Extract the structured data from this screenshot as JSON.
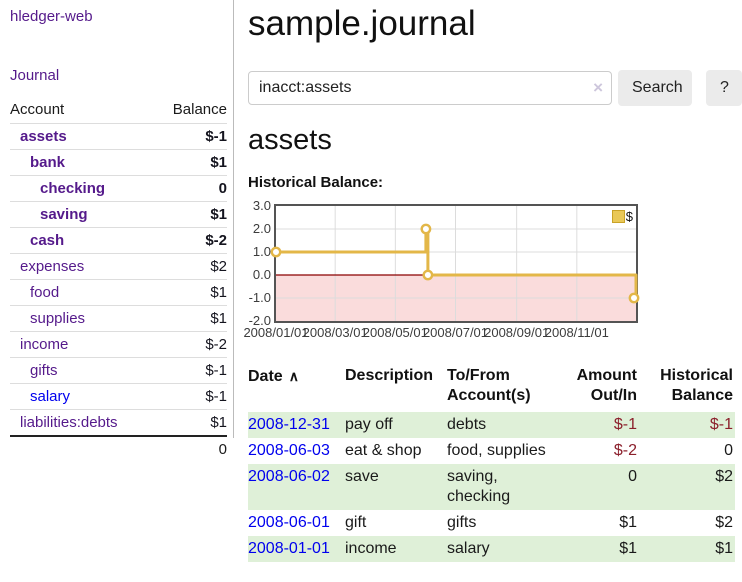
{
  "app": {
    "title": "hledger-web"
  },
  "sidebar": {
    "nav_journal": "Journal",
    "accounts_header": {
      "account": "Account",
      "balance": "Balance"
    },
    "accounts": [
      {
        "name": "assets",
        "indent": 1,
        "bold": true,
        "balance": "$-1",
        "balance_style": "neg-strong"
      },
      {
        "name": "bank",
        "indent": 2,
        "bold": true,
        "balance": "$1",
        "balance_style": ""
      },
      {
        "name": "checking",
        "indent": 3,
        "bold": true,
        "balance": "0",
        "balance_style": ""
      },
      {
        "name": "saving",
        "indent": 3,
        "bold": true,
        "balance": "$1",
        "balance_style": ""
      },
      {
        "name": "cash",
        "indent": 2,
        "bold": true,
        "balance": "$-2",
        "balance_style": "neg-strong"
      },
      {
        "name": "expenses",
        "indent": 1,
        "bold": false,
        "balance": "$2",
        "balance_style": ""
      },
      {
        "name": "food",
        "indent": 2,
        "bold": false,
        "balance": "$1",
        "balance_style": ""
      },
      {
        "name": "supplies",
        "indent": 2,
        "bold": false,
        "balance": "$1",
        "balance_style": ""
      },
      {
        "name": "income",
        "indent": 1,
        "bold": false,
        "balance": "$-2",
        "balance_style": "neg-soft"
      },
      {
        "name": "gifts",
        "indent": 2,
        "bold": false,
        "balance": "$-1",
        "balance_style": "neg-soft"
      },
      {
        "name": "salary",
        "indent": 2,
        "bold": false,
        "link_color": "blue",
        "balance": "$-1",
        "balance_style": "neg-soft"
      },
      {
        "name": "liabilities:debts",
        "indent": 1,
        "bold": false,
        "balance": "$1",
        "balance_style": ""
      }
    ],
    "total_balance": "0"
  },
  "header": {
    "title": "sample.journal"
  },
  "search": {
    "value": "inacct:assets",
    "clear_icon": "×",
    "button_label": "Search",
    "help_label": "?"
  },
  "account_page": {
    "title": "assets",
    "chart_label": "Historical Balance:"
  },
  "chart_data": {
    "type": "line",
    "step": true,
    "title": "Historical Balance",
    "x_start": "2008-01-01",
    "x_end": "2008-12-31",
    "ylim": [
      -2,
      3
    ],
    "yticks": [
      "3.0",
      "2.0",
      "1.0",
      "0.0",
      "-1.0",
      "-2.0"
    ],
    "xtick_dates": [
      "2008-01-01",
      "2008-03-01",
      "2008-05-01",
      "2008-07-01",
      "2008-09-01",
      "2008-11-01"
    ],
    "xtick_labels": [
      "2008/01/01",
      "2008/03/01",
      "2008/05/01",
      "2008/07/01",
      "2008/09/01",
      "2008/11/01"
    ],
    "grid": true,
    "series": [
      {
        "name": "$",
        "color": "#e3b748",
        "points": [
          {
            "x": "2008-01-01",
            "y": 1
          },
          {
            "x": "2008-06-01",
            "y": 2
          },
          {
            "x": "2008-06-02",
            "y": 2
          },
          {
            "x": "2008-06-03",
            "y": 0
          },
          {
            "x": "2008-12-31",
            "y": -1
          }
        ],
        "marker_points": [
          {
            "x": "2008-01-01",
            "y": 1
          },
          {
            "x": "2008-06-01",
            "y": 2
          },
          {
            "x": "2008-06-03",
            "y": 0
          },
          {
            "x": "2008-12-31",
            "y": -1
          }
        ]
      }
    ],
    "legend": {
      "position": "top-right",
      "entries": [
        {
          "label": "$",
          "color": "#e9c858"
        }
      ]
    },
    "negative_region": {
      "below": 0,
      "color": "#fadcdc"
    },
    "zero_line_color": "#8b0000",
    "gridline_color": "#dcdcdc"
  },
  "register_table": {
    "headers": {
      "date": "Date",
      "sort_indicator": "∧",
      "description": "Description",
      "accounts": "To/From Account(s)",
      "amount": "Amount Out/In",
      "balance": "Historical Balance"
    },
    "rows": [
      {
        "date": "2008-12-31",
        "description": "pay off",
        "accounts": "debts",
        "amount": "$-1",
        "amount_neg": true,
        "balance": "$-1",
        "balance_neg": true
      },
      {
        "date": "2008-06-03",
        "description": "eat & shop",
        "accounts": "food, supplies",
        "amount": "$-2",
        "amount_neg": true,
        "balance": "0",
        "balance_neg": false
      },
      {
        "date": "2008-06-02",
        "description": "save",
        "accounts": "saving, checking",
        "amount": "0",
        "amount_neg": false,
        "balance": "$2",
        "balance_neg": false
      },
      {
        "date": "2008-06-01",
        "description": "gift",
        "accounts": "gifts",
        "amount": "$1",
        "amount_neg": false,
        "balance": "$2",
        "balance_neg": false
      },
      {
        "date": "2008-01-01",
        "description": "income",
        "accounts": "salary",
        "amount": "$1",
        "amount_neg": false,
        "balance": "$1",
        "balance_neg": false
      }
    ]
  },
  "colors": {
    "link_purple": "#551a8b",
    "link_blue": "#0000ee",
    "negative_strong": "#a40000",
    "negative_soft": "#b76c6c",
    "negative_table": "#8b1f2b",
    "row_stripe_green": "#dff0d8",
    "chart_line_gold": "#e3b748",
    "chart_negative_pink": "#fadcdc",
    "chart_zero_line": "#8b0000"
  }
}
